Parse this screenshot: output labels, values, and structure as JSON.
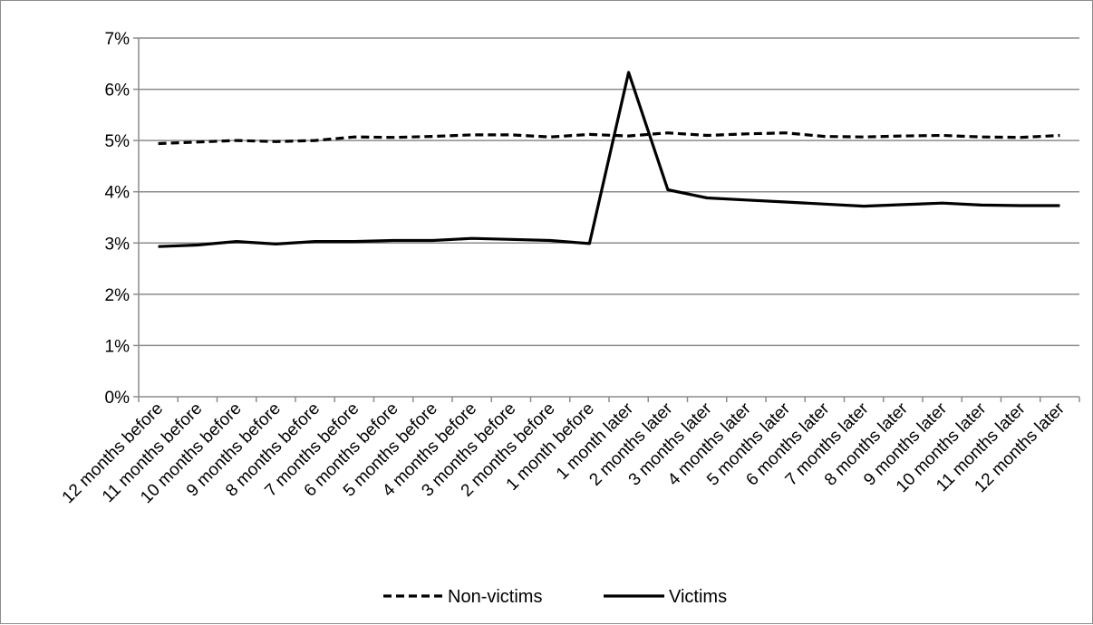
{
  "chart_data": {
    "type": "line",
    "title": "",
    "xlabel": "",
    "ylabel": "",
    "ylim": [
      0,
      0.07
    ],
    "y_ticks": [
      "0%",
      "1%",
      "2%",
      "3%",
      "4%",
      "5%",
      "6%",
      "7%"
    ],
    "grid": "horizontal",
    "legend_position": "bottom",
    "categories": [
      "12 months before",
      "11 months before",
      "10 months before",
      "9 months before",
      "8 months before",
      "7 months before",
      "6 months before",
      "5 months before",
      "4 months before",
      "3 months before",
      "2 months before",
      "1 month before",
      "1 month later",
      "2 months later",
      "3 months later",
      "4 months later",
      "5 months later",
      "6 months later",
      "7 months later",
      "8 months later",
      "9 months later",
      "10 months later",
      "11 months later",
      "12 months later"
    ],
    "series": [
      {
        "name": "Non-victims",
        "style": "dashed",
        "color": "#000000",
        "values": [
          0.0494,
          0.0497,
          0.05,
          0.0498,
          0.05,
          0.0507,
          0.0506,
          0.0508,
          0.0511,
          0.0511,
          0.0507,
          0.0512,
          0.0509,
          0.0515,
          0.051,
          0.0513,
          0.0515,
          0.0508,
          0.0507,
          0.0509,
          0.051,
          0.0507,
          0.0506,
          0.051
        ]
      },
      {
        "name": "Victims",
        "style": "solid",
        "color": "#000000",
        "values": [
          0.0293,
          0.0296,
          0.0303,
          0.0298,
          0.0303,
          0.0303,
          0.0305,
          0.0305,
          0.0309,
          0.0307,
          0.0305,
          0.0299,
          0.0633,
          0.0404,
          0.0388,
          0.0384,
          0.038,
          0.0376,
          0.0372,
          0.0375,
          0.0378,
          0.0374,
          0.0373,
          0.0373
        ]
      }
    ]
  }
}
